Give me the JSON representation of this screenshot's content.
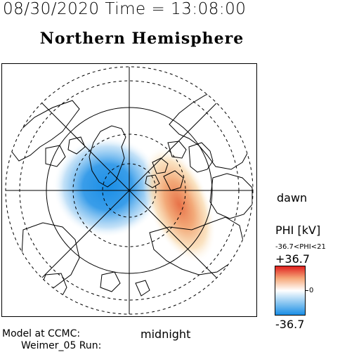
{
  "header": {
    "datetime": "08/30/2020 Time = 13:08:00",
    "hemisphere": "Northern Hemisphere"
  },
  "map": {
    "dawn_label": "dawn",
    "midnight_label": "midnight",
    "colors": {
      "positive": "#e0201e",
      "negative": "#1a8ee6",
      "coast": "#000000"
    }
  },
  "colorbar": {
    "title": "PHI [kV]",
    "range_text": "-36.7<PHI<21",
    "max_label": "+36.7",
    "zero_label": "0",
    "min_label": "-36.7"
  },
  "footer": {
    "model_text": "Model at CCMC:",
    "run_text": "Weimer_05 Run:"
  }
}
